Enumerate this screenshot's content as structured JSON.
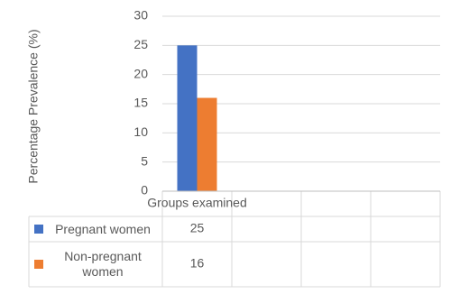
{
  "chart_data": {
    "type": "bar",
    "y_label": "Percentage Prevalence (%)",
    "categories": [
      "Groups examined",
      null,
      null,
      null
    ],
    "series": [
      {
        "name": "Pregnant women",
        "color": "#4472c4",
        "values": [
          25,
          null,
          null,
          null
        ]
      },
      {
        "name": "Non-pregnant women",
        "color": "#ed7d31",
        "values": [
          16,
          null,
          null,
          null
        ]
      }
    ],
    "ylim": [
      0,
      30
    ],
    "yticks": [
      0,
      5,
      10,
      15,
      20,
      25,
      30
    ],
    "grid": true
  }
}
